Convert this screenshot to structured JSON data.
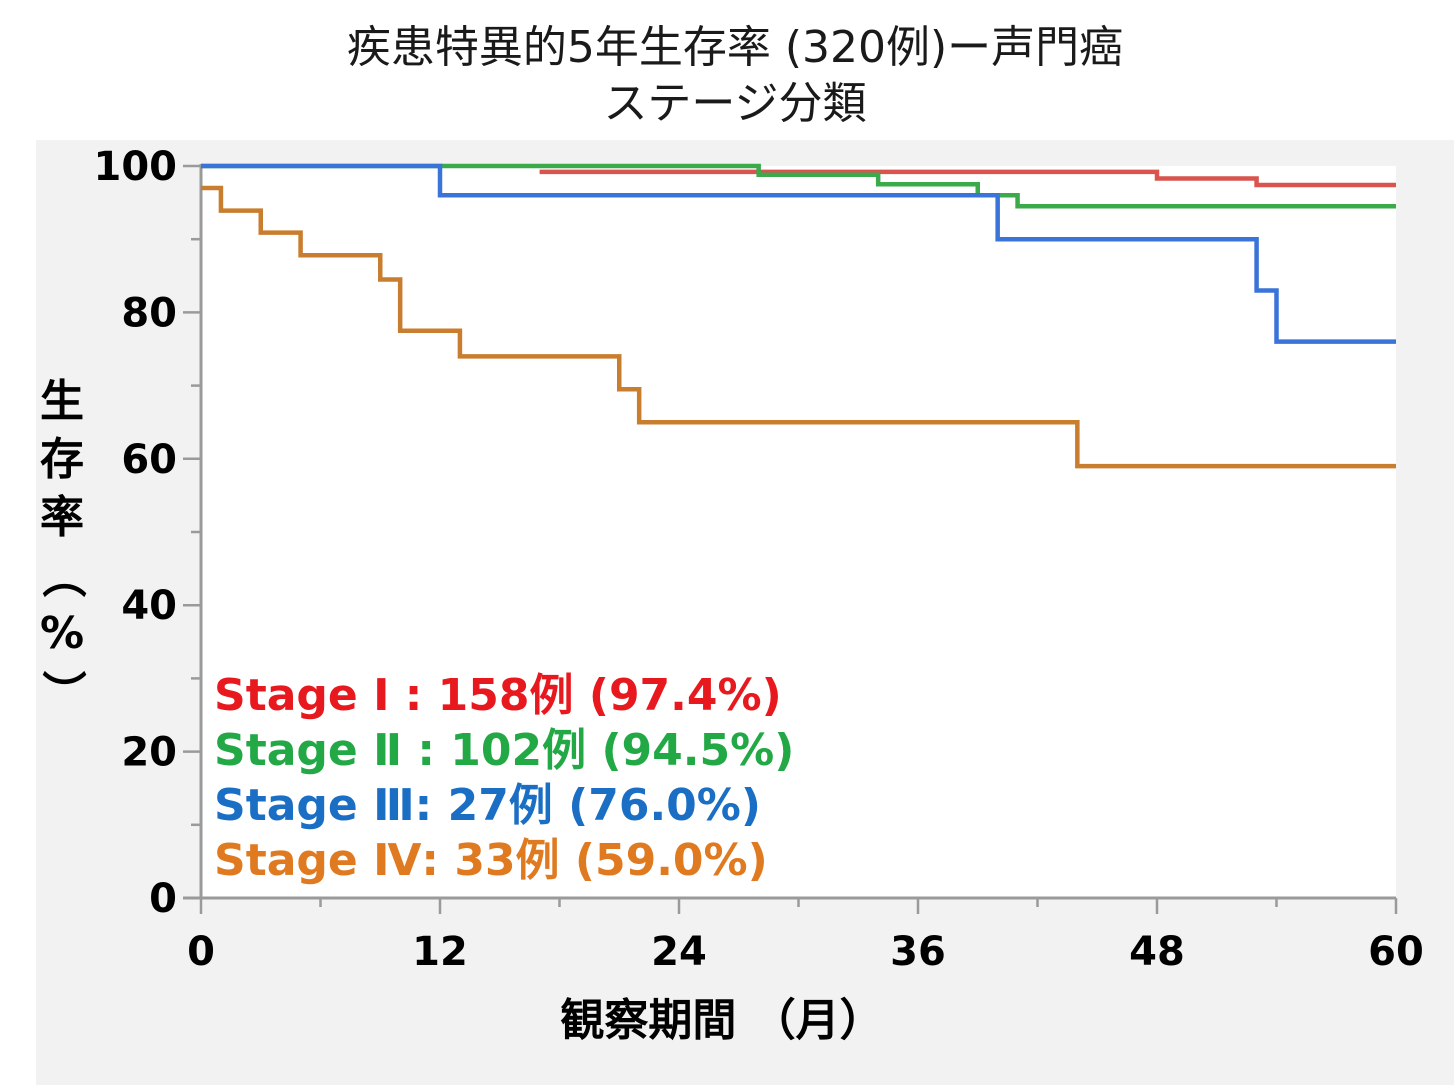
{
  "chart_data": {
    "type": "line",
    "step": true,
    "title": "疾患特異的5年生存率 (320例)ー声門癌",
    "subtitle": "ステージ分類",
    "xlabel": "観察期間 （月）",
    "ylabel": "生存率（%）",
    "xlim": [
      0,
      60
    ],
    "ylim": [
      0,
      100
    ],
    "xticks": [
      "0",
      "12",
      "24",
      "36",
      "48",
      "60"
    ],
    "yticks": [
      "0",
      "20",
      "40",
      "60",
      "80",
      "100"
    ],
    "grid": false,
    "legend_position": "bottom-left",
    "series": [
      {
        "name": "Stage Ⅰ",
        "legend": "Stage Ⅰ : 158例 (97.4%)",
        "color": "#d9534f",
        "legend_color": "#e8191e",
        "x": [
          17,
          28,
          48,
          53,
          60
        ],
        "y": [
          99.2,
          99.2,
          98.3,
          97.4,
          97.4
        ]
      },
      {
        "name": "Stage Ⅱ",
        "legend": "Stage Ⅱ : 102例 (94.5%)",
        "color": "#3aaa4a",
        "legend_color": "#22a845",
        "x": [
          0,
          28,
          34,
          39,
          41,
          60
        ],
        "y": [
          100,
          98.8,
          97.5,
          96.0,
          94.5,
          94.5
        ]
      },
      {
        "name": "Stage Ⅲ",
        "legend": "Stage Ⅲ:   27例 (76.0%)",
        "color": "#3a74d8",
        "legend_color": "#1a6fc4",
        "x": [
          0,
          12,
          40,
          53,
          54,
          60
        ],
        "y": [
          100,
          96.0,
          90.0,
          83.0,
          76.0,
          76.0
        ]
      },
      {
        "name": "Stage Ⅳ",
        "legend": "Stage Ⅳ:   33例 (59.0%)",
        "color": "#c97d2e",
        "legend_color": "#e07a20",
        "x": [
          0,
          1,
          3,
          5,
          9,
          10,
          13,
          21,
          22,
          44,
          60
        ],
        "y": [
          97,
          93.9,
          90.9,
          87.8,
          84.5,
          77.5,
          74.0,
          69.5,
          65.0,
          59.0,
          59.0
        ]
      }
    ]
  }
}
